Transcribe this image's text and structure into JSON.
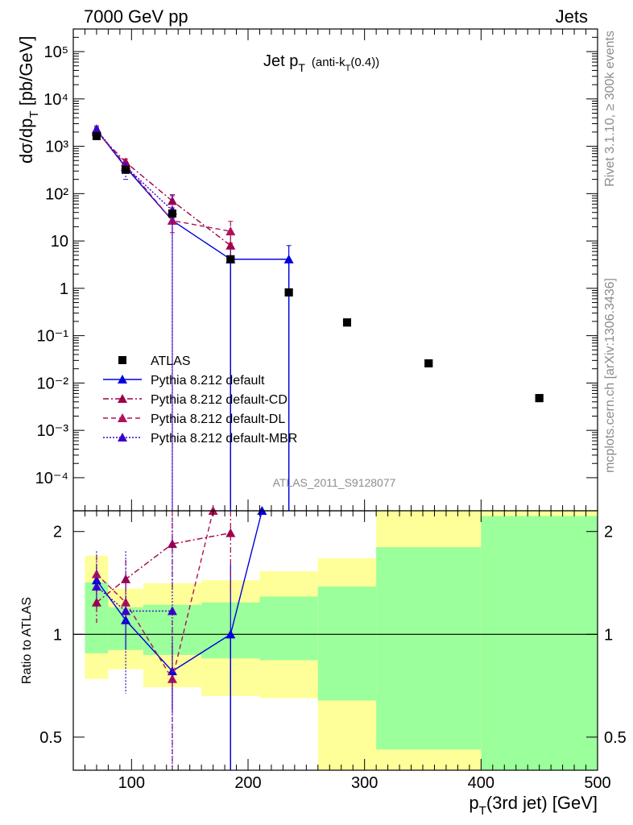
{
  "header": {
    "energy_label": "7000 GeV pp",
    "category_label": "Jets"
  },
  "side_labels": {
    "rivet": "Rivet 3.1.10, ≥ 300k events",
    "mcplots": "mcplots.cern.ch [arXiv:1306.3436]"
  },
  "analysis_id": "ATLAS_2011_S9128077",
  "colors": {
    "atlas": "#000000",
    "default": "#0000e0",
    "cd": "#a0004a",
    "dl": "#b0105a",
    "mbr": "#3b00c8",
    "band_inner": "#9bff9b",
    "band_outer": "#ffff99"
  },
  "chart_data": [
    {
      "type": "scatter",
      "panel": "main",
      "title_main": "Jet p",
      "title_sub": "T",
      "title_extra": "(anti-k",
      "title_extra_sub": "T",
      "title_extra_end": "(0.4))",
      "ylabel": "dσ/dp",
      "ylabel_sub": "T",
      "ylabel_end": " [pb/GeV]",
      "yscale": "log",
      "ylim": [
        2e-05,
        300000
      ],
      "xlim": [
        50,
        500
      ],
      "y_tick_labels": [
        "10⁵",
        "10⁴",
        "10³",
        "10²",
        "10",
        "1",
        "10⁻¹",
        "10⁻²",
        "10⁻³",
        "10⁻⁴"
      ],
      "y_tick_values": [
        100000,
        10000,
        1000,
        100,
        10,
        1,
        0.1,
        0.01,
        0.001,
        0.0001
      ],
      "legend_position": "bottom-left",
      "series": [
        {
          "name": "ATLAS",
          "key": "atlas",
          "style": "square",
          "x": [
            70,
            95,
            135,
            185,
            235,
            285,
            355,
            450
          ],
          "y": [
            1650,
            320,
            38,
            4.1,
            0.82,
            0.19,
            0.026,
            0.0048
          ],
          "xerr": [
            0,
            0,
            0,
            0,
            0,
            0,
            0,
            0
          ]
        },
        {
          "name": "Pythia 8.212 default",
          "key": "default",
          "style": "solid",
          "x": [
            70,
            95,
            135,
            185,
            235
          ],
          "y": [
            2200,
            360,
            27,
            4.1,
            4.1
          ],
          "ylo": [
            1900,
            300,
            25,
            1e-06,
            1e-06
          ],
          "yhi": [
            2500,
            420,
            30,
            7,
            8
          ],
          "step_x": [
            [
              60,
              80
            ],
            [
              80,
              110
            ],
            [
              110,
              160
            ],
            [
              160,
              210
            ],
            [
              210,
              260
            ]
          ]
        },
        {
          "name": "Pythia 8.212 default-CD",
          "key": "cd",
          "style": "dashdot",
          "x": [
            70,
            95,
            135,
            185
          ],
          "y": [
            2000,
            460,
            70,
            8
          ],
          "ylo": [
            1700,
            380,
            50,
            4
          ],
          "yhi": [
            2400,
            540,
            95,
            14
          ]
        },
        {
          "name": "Pythia 8.212 default-DL",
          "key": "dl",
          "style": "dashed",
          "x": [
            70,
            95,
            135,
            185
          ],
          "y": [
            2100,
            400,
            27,
            16
          ],
          "ylo": [
            1800,
            330,
            15,
            9
          ],
          "yhi": [
            2500,
            480,
            45,
            26
          ]
        },
        {
          "name": "Pythia 8.212 default-MBR",
          "key": "mbr",
          "style": "dotted",
          "x": [
            70,
            95,
            135
          ],
          "y": [
            2300,
            370,
            44
          ],
          "ylo": [
            1900,
            200,
            1e-06
          ],
          "yhi": [
            2700,
            450,
            90
          ]
        }
      ]
    },
    {
      "type": "scatter",
      "panel": "ratio",
      "ylabel": "Ratio to ATLAS",
      "xlabel": "p",
      "xlabel_sub": "T",
      "xlabel_end": "(3rd jet) [GeV]",
      "yscale": "log",
      "ylim": [
        0.4,
        2.3
      ],
      "xlim": [
        50,
        500
      ],
      "y_tick_labels": [
        "0.5",
        "1",
        "2"
      ],
      "y_tick_values": [
        0.5,
        1,
        2
      ],
      "x_tick_labels": [
        "100",
        "200",
        "300",
        "400",
        "500"
      ],
      "x_tick_values": [
        100,
        200,
        300,
        400,
        500
      ],
      "bands": [
        {
          "xlo": 60,
          "xhi": 80,
          "inner_lo": 0.88,
          "inner_hi": 1.42,
          "outer_lo": 0.74,
          "outer_hi": 1.7
        },
        {
          "xlo": 80,
          "xhi": 110,
          "inner_lo": 0.9,
          "inner_hi": 1.2,
          "outer_lo": 0.79,
          "outer_hi": 1.36
        },
        {
          "xlo": 110,
          "xhi": 160,
          "inner_lo": 0.87,
          "inner_hi": 1.22,
          "outer_lo": 0.7,
          "outer_hi": 1.41
        },
        {
          "xlo": 160,
          "xhi": 210,
          "inner_lo": 0.85,
          "inner_hi": 1.24,
          "outer_lo": 0.66,
          "outer_hi": 1.44
        },
        {
          "xlo": 210,
          "xhi": 260,
          "inner_lo": 0.84,
          "inner_hi": 1.29,
          "outer_lo": 0.65,
          "outer_hi": 1.53
        },
        {
          "xlo": 260,
          "xhi": 310,
          "inner_lo": 0.64,
          "inner_hi": 1.38,
          "outer_lo": 0.4,
          "outer_hi": 1.67
        },
        {
          "xlo": 310,
          "xhi": 400,
          "inner_lo": 0.46,
          "inner_hi": 1.8,
          "outer_lo": 0.4,
          "outer_hi": 2.3
        },
        {
          "xlo": 400,
          "xhi": 500,
          "inner_lo": 0.4,
          "inner_hi": 2.22,
          "outer_lo": 0.4,
          "outer_hi": 2.3
        }
      ],
      "series": [
        {
          "key": "default",
          "style": "solid",
          "x": [
            70,
            95,
            135,
            185,
            212
          ],
          "y": [
            1.44,
            1.1,
            0.78,
            1.0,
            2.3
          ],
          "ylo": [
            1.3,
            0.9,
            0.6,
            0.4,
            2.3
          ],
          "yhi": [
            1.6,
            1.3,
            0.95,
            1.6,
            2.3
          ]
        },
        {
          "key": "cd",
          "style": "dashdot",
          "x": [
            70,
            95,
            135,
            185
          ],
          "y": [
            1.24,
            1.45,
            1.84,
            1.98
          ],
          "ylo": [
            1.08,
            1.25,
            1.3,
            1.3
          ],
          "yhi": [
            1.42,
            1.65,
            2.3,
            2.3
          ]
        },
        {
          "key": "dl",
          "style": "dashed",
          "x": [
            70,
            95,
            135,
            170
          ],
          "y": [
            1.5,
            1.24,
            0.74,
            2.3
          ],
          "ylo": [
            1.32,
            1.05,
            0.4,
            2.3
          ],
          "yhi": [
            1.7,
            1.45,
            1.1,
            2.3
          ]
        },
        {
          "key": "mbr",
          "style": "dotted",
          "x": [
            70,
            95,
            135
          ],
          "y": [
            1.38,
            1.17,
            1.17
          ],
          "ylo": [
            1.2,
            0.67,
            0.4
          ],
          "yhi": [
            1.75,
            1.75,
            2.2
          ]
        }
      ]
    }
  ]
}
